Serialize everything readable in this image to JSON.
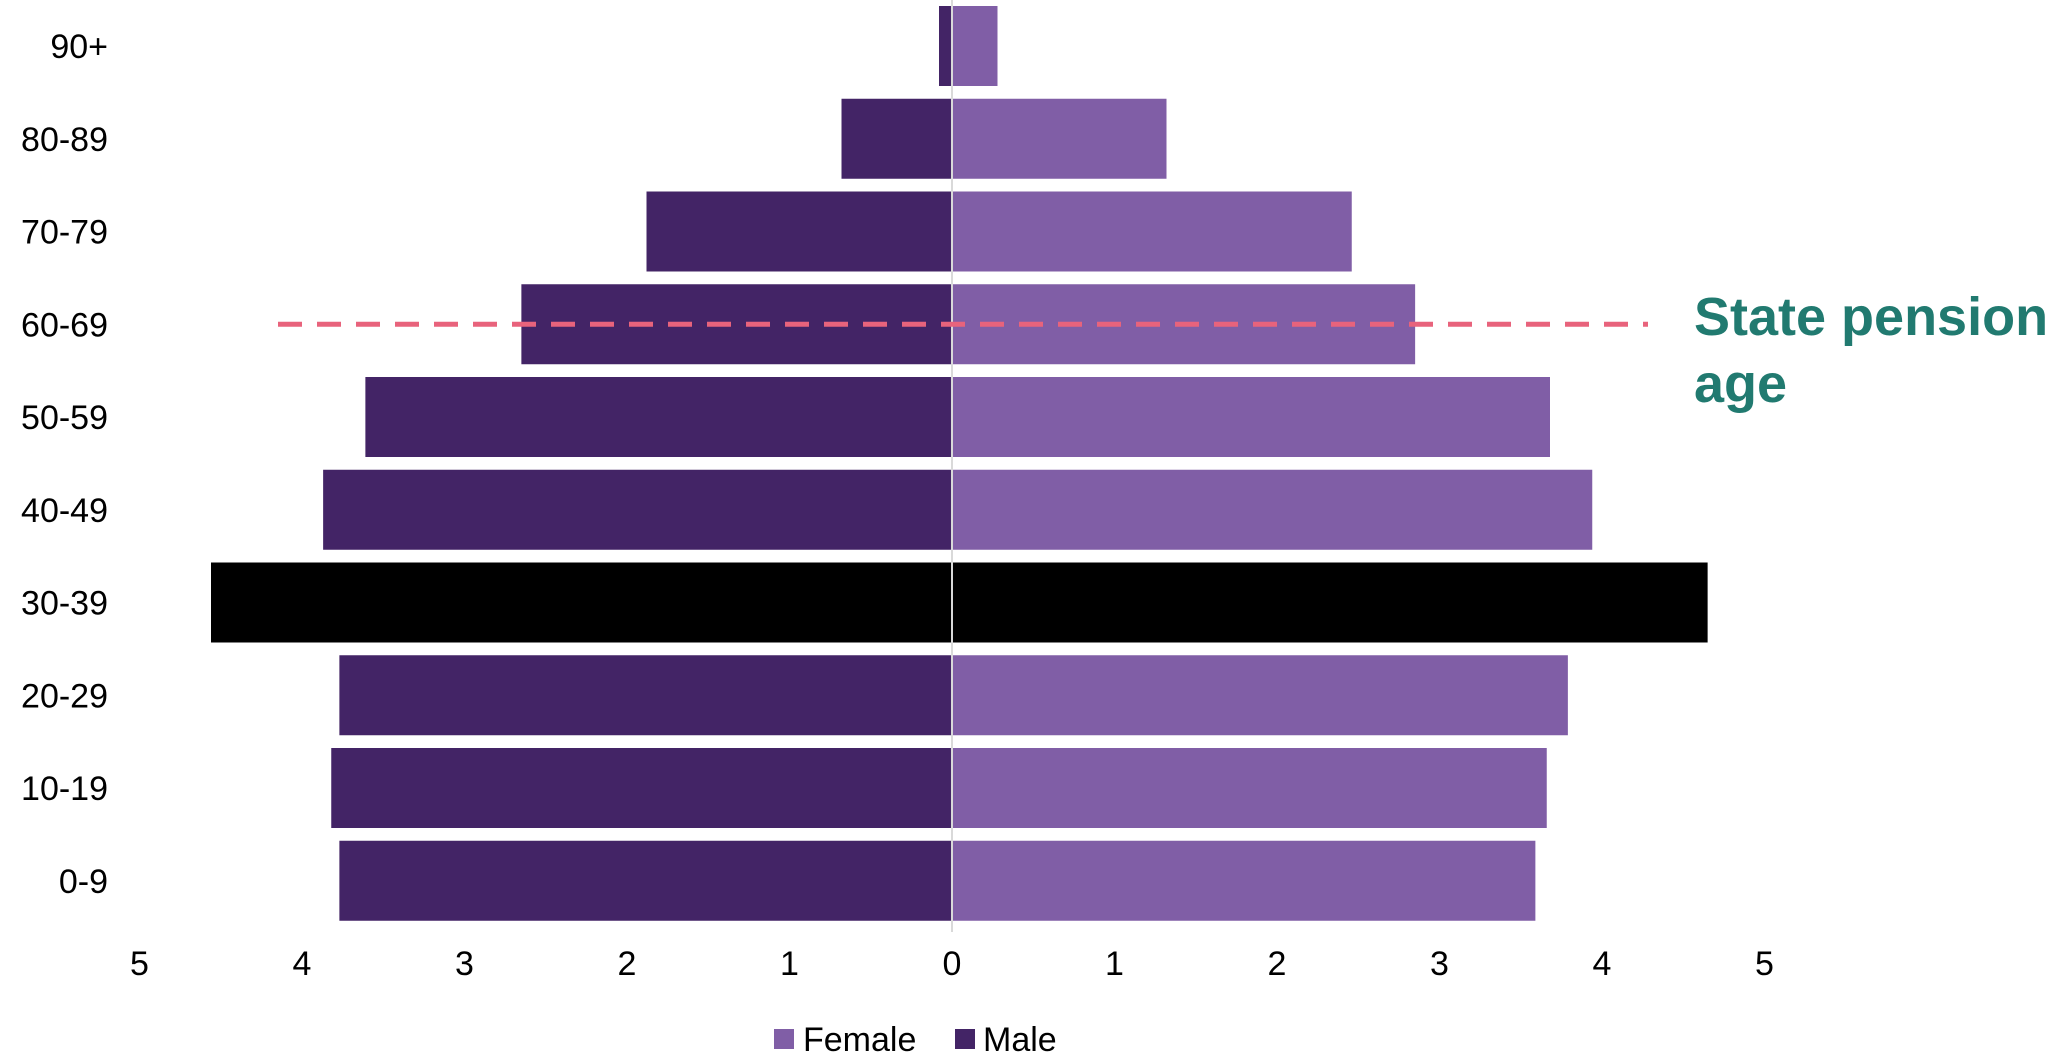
{
  "chart_data": {
    "type": "bar",
    "orientation": "horizontal",
    "layout": "population-pyramid",
    "categories": [
      "0-9",
      "10-19",
      "20-29",
      "30-39",
      "40-49",
      "50-59",
      "60-69",
      "70-79",
      "80-89",
      "90+"
    ],
    "series": [
      {
        "name": "Male",
        "side": "left",
        "color": "#432466",
        "values": [
          3.77,
          3.82,
          3.77,
          4.56,
          3.87,
          3.61,
          2.65,
          1.88,
          0.68,
          0.08
        ]
      },
      {
        "name": "Female",
        "side": "right",
        "color": "#805ea6",
        "values": [
          3.59,
          3.66,
          3.79,
          4.65,
          3.94,
          3.68,
          2.85,
          2.46,
          1.32,
          0.28
        ]
      }
    ],
    "highlight": {
      "category": "30-39",
      "color": "#000000"
    },
    "xlim": [
      -5,
      5
    ],
    "xticks": [
      5,
      4,
      3,
      2,
      1,
      0,
      1,
      2,
      3,
      4,
      5
    ],
    "xlabel": "",
    "ylabel": "",
    "title": "",
    "grid": false,
    "legend": {
      "position": "bottom",
      "items": [
        "Female",
        "Male"
      ]
    },
    "reference_line": {
      "category": "60-69",
      "style": "dashed",
      "color": "#e8637c",
      "label_lines": [
        "State pension",
        "age"
      ],
      "label_color": "#217a70"
    }
  }
}
